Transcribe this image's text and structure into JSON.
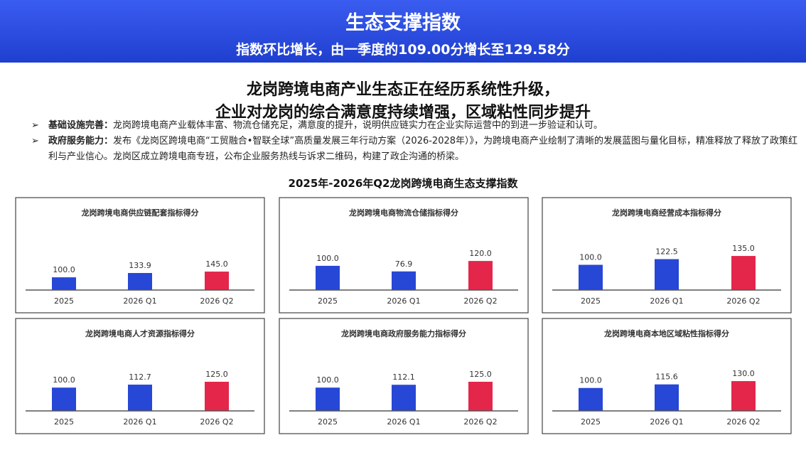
{
  "header": {
    "title": "生态支撑指数",
    "subtitle": "指数环比增长，由一季度的109.00分增长至129.58分"
  },
  "headline": [
    "龙岗跨境电商产业生态正在经历系统性升级，",
    "企业对龙岗的综合满意度持续增强，区域粘性同步提升"
  ],
  "bullets": [
    {
      "label": "基础设施完善：",
      "text": "龙岗跨境电商产业载体丰富、物流仓储充足，满意度的提升，说明供应链实力在企业实际运营中的到进一步验证和认可。"
    },
    {
      "label": "政府服务能力：",
      "text": "发布《龙岗区跨境电商“工贸融合•智联全球”高质量发展三年行动方案（2026-2028年）》，为跨境电商产业绘制了清晰的发展蓝图与量化目标，精准释放了释放了政策红利与产业信心。龙岗区成立跨境电商专班，公布企业服务热线与诉求二维码，构建了政企沟通的桥梁。"
    }
  ],
  "section_title": "2025年-2026年Q2龙岗跨境电商生态支撑指数",
  "chart_data": [
    {
      "type": "bar",
      "title": "龙岗跨境电商供应链配套指标得分",
      "categories": [
        "2025",
        "2026 Q1",
        "2026 Q2"
      ],
      "values": [
        100,
        133.9,
        145
      ],
      "value_labels": [
        "100.0",
        "133.9",
        "145.0"
      ],
      "colors": [
        "#2747d6",
        "#2747d6",
        "#e4264b"
      ],
      "ylim": [
        0,
        335
      ]
    },
    {
      "type": "bar",
      "title": "龙岗跨境电商物流仓储指标得分",
      "categories": [
        "2025",
        "2026 Q1",
        "2026 Q2"
      ],
      "values": [
        100,
        76.9,
        120
      ],
      "value_labels": [
        "100.0",
        "76.9",
        "120.0"
      ],
      "colors": [
        "#2747d6",
        "#2747d6",
        "#e4264b"
      ],
      "ylim": [
        0,
        176
      ]
    },
    {
      "type": "bar",
      "title": "龙岗跨境电商经营成本指标得分",
      "categories": [
        "2025",
        "2026 Q1",
        "2026 Q2"
      ],
      "values": [
        100,
        122.5,
        135
      ],
      "value_labels": [
        "100.0",
        "122.5",
        "135.0"
      ],
      "colors": [
        "#2747d6",
        "#2747d6",
        "#e4264b"
      ],
      "ylim": [
        0,
        169
      ]
    },
    {
      "type": "bar",
      "title": "龙岗跨境电商人才资源指标得分",
      "categories": [
        "2025",
        "2026 Q1",
        "2026 Q2"
      ],
      "values": [
        100,
        112.7,
        125
      ],
      "value_labels": [
        "100.0",
        "112.7",
        "125.0"
      ],
      "colors": [
        "#2747d6",
        "#2747d6",
        "#e4264b"
      ],
      "ylim": [
        0,
        183
      ]
    },
    {
      "type": "bar",
      "title": "龙岗跨境电商政府服务能力指标得分",
      "categories": [
        "2025",
        "2026 Q1",
        "2026 Q2"
      ],
      "values": [
        100,
        112.1,
        125
      ],
      "value_labels": [
        "100.0",
        "112.1",
        "125.0"
      ],
      "colors": [
        "#2747d6",
        "#2747d6",
        "#e4264b"
      ],
      "ylim": [
        0,
        183
      ]
    },
    {
      "type": "bar",
      "title": "龙岗跨境电商本地区域粘性指标得分",
      "categories": [
        "2025",
        "2026 Q1",
        "2026 Q2"
      ],
      "values": [
        100,
        115.6,
        130
      ],
      "value_labels": [
        "100.0",
        "115.6",
        "130.0"
      ],
      "colors": [
        "#2747d6",
        "#2747d6",
        "#e4264b"
      ],
      "ylim": [
        0,
        186
      ]
    }
  ]
}
